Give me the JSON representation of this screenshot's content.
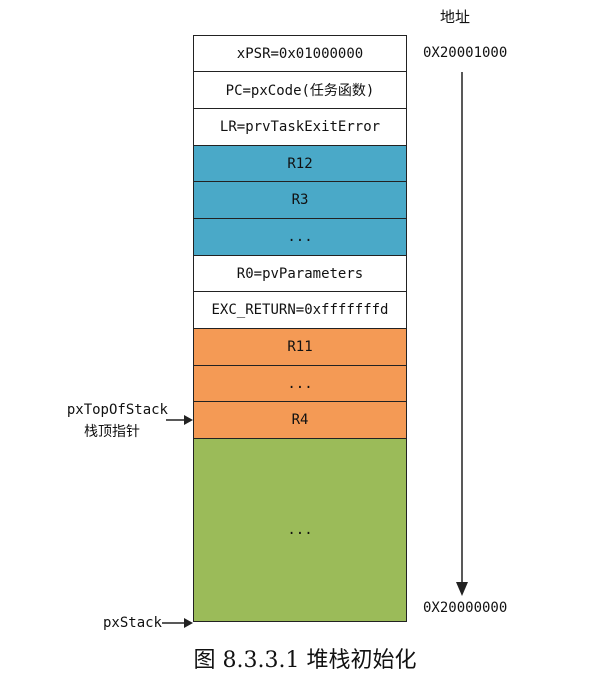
{
  "address_title": "地址",
  "address_top": "0X20001000",
  "address_bottom": "0X20000000",
  "cells": [
    {
      "text": "xPSR=0x01000000",
      "color": "white"
    },
    {
      "text": "PC=pxCode(任务函数)",
      "color": "white"
    },
    {
      "text": "LR=prvTaskExitError",
      "color": "white"
    },
    {
      "text": "R12",
      "color": "blue"
    },
    {
      "text": "R3",
      "color": "blue"
    },
    {
      "text": "...",
      "color": "blue"
    },
    {
      "text": "R0=pvParameters",
      "color": "white"
    },
    {
      "text": "EXC_RETURN=0xfffffffd",
      "color": "white"
    },
    {
      "text": "R11",
      "color": "orange"
    },
    {
      "text": "...",
      "color": "orange"
    },
    {
      "text": "R4",
      "color": "orange"
    },
    {
      "text": "...",
      "color": "green"
    }
  ],
  "pointer_top_name": "pxTopOfStack",
  "pointer_top_desc": "栈顶指针",
  "pointer_stack": "pxStack",
  "caption": "图 8.3.3.1  堆栈初始化",
  "colors": {
    "white": "#ffffff",
    "blue": "#4aa9c8",
    "orange": "#f49a55",
    "green": "#9bbb59",
    "line": "#222222"
  }
}
